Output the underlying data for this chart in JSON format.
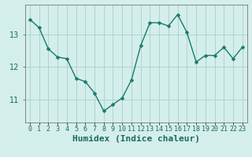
{
  "x": [
    0,
    1,
    2,
    3,
    4,
    5,
    6,
    7,
    8,
    9,
    10,
    11,
    12,
    13,
    14,
    15,
    16,
    17,
    18,
    19,
    20,
    21,
    22,
    23
  ],
  "y": [
    13.45,
    13.2,
    12.55,
    12.3,
    12.25,
    11.65,
    11.55,
    11.2,
    10.65,
    10.85,
    11.05,
    11.6,
    12.65,
    13.35,
    13.35,
    13.25,
    13.6,
    13.05,
    12.15,
    12.35,
    12.35,
    12.6,
    12.25,
    12.6
  ],
  "line_color": "#1a7a6e",
  "marker_color": "#1a7a6e",
  "bg_color": "#d4eeeb",
  "grid_color": "#aed4d0",
  "xlabel": "Humidex (Indice chaleur)",
  "yticks": [
    11,
    12,
    13
  ],
  "ylim": [
    10.3,
    13.9
  ],
  "xlim": [
    -0.5,
    23.5
  ],
  "label_color": "#1a6a60",
  "axis_color": "#555555",
  "tick_color": "#1a6a60",
  "font_size_label": 8,
  "font_size_xtick": 6,
  "font_size_ytick": 7,
  "line_width": 1.0,
  "marker_size": 2.5
}
